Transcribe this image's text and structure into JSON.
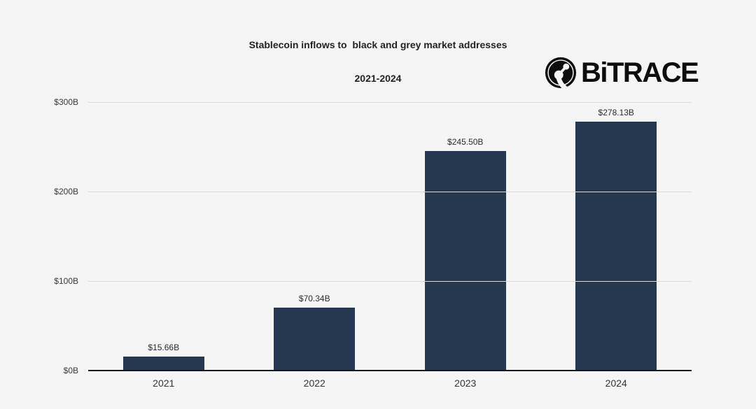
{
  "title": {
    "line1": "Stablecoin inflows to  black and grey market addresses",
    "line2": "2021-2024"
  },
  "logo": {
    "brand": "BiTRACE"
  },
  "chart_data": {
    "type": "bar",
    "title": "Stablecoin inflows to  black and grey market addresses",
    "subtitle": "2021-2024",
    "categories": [
      "2021",
      "2022",
      "2023",
      "2024"
    ],
    "values": [
      15.66,
      70.34,
      245.5,
      278.13
    ],
    "value_labels": [
      "$15.66B",
      "$70.34B",
      "$245.50B",
      "$278.13B"
    ],
    "y_ticks": [
      {
        "label": "$0B",
        "value": 0
      },
      {
        "label": "$100B",
        "value": 100
      },
      {
        "label": "$200B",
        "value": 200
      },
      {
        "label": "$300B",
        "value": 300
      }
    ],
    "ylim": [
      0,
      300
    ],
    "xlabel": "",
    "ylabel": "",
    "grid": true,
    "legend": false,
    "bar_color": "#263850"
  },
  "colors": {
    "background": "#f5f5f6",
    "bar": "#263850",
    "gridline": "#d9d9d9",
    "axis": "#17191d",
    "title_text": "#222326",
    "label_text": "#333437",
    "logo": "#0c0d0f"
  }
}
